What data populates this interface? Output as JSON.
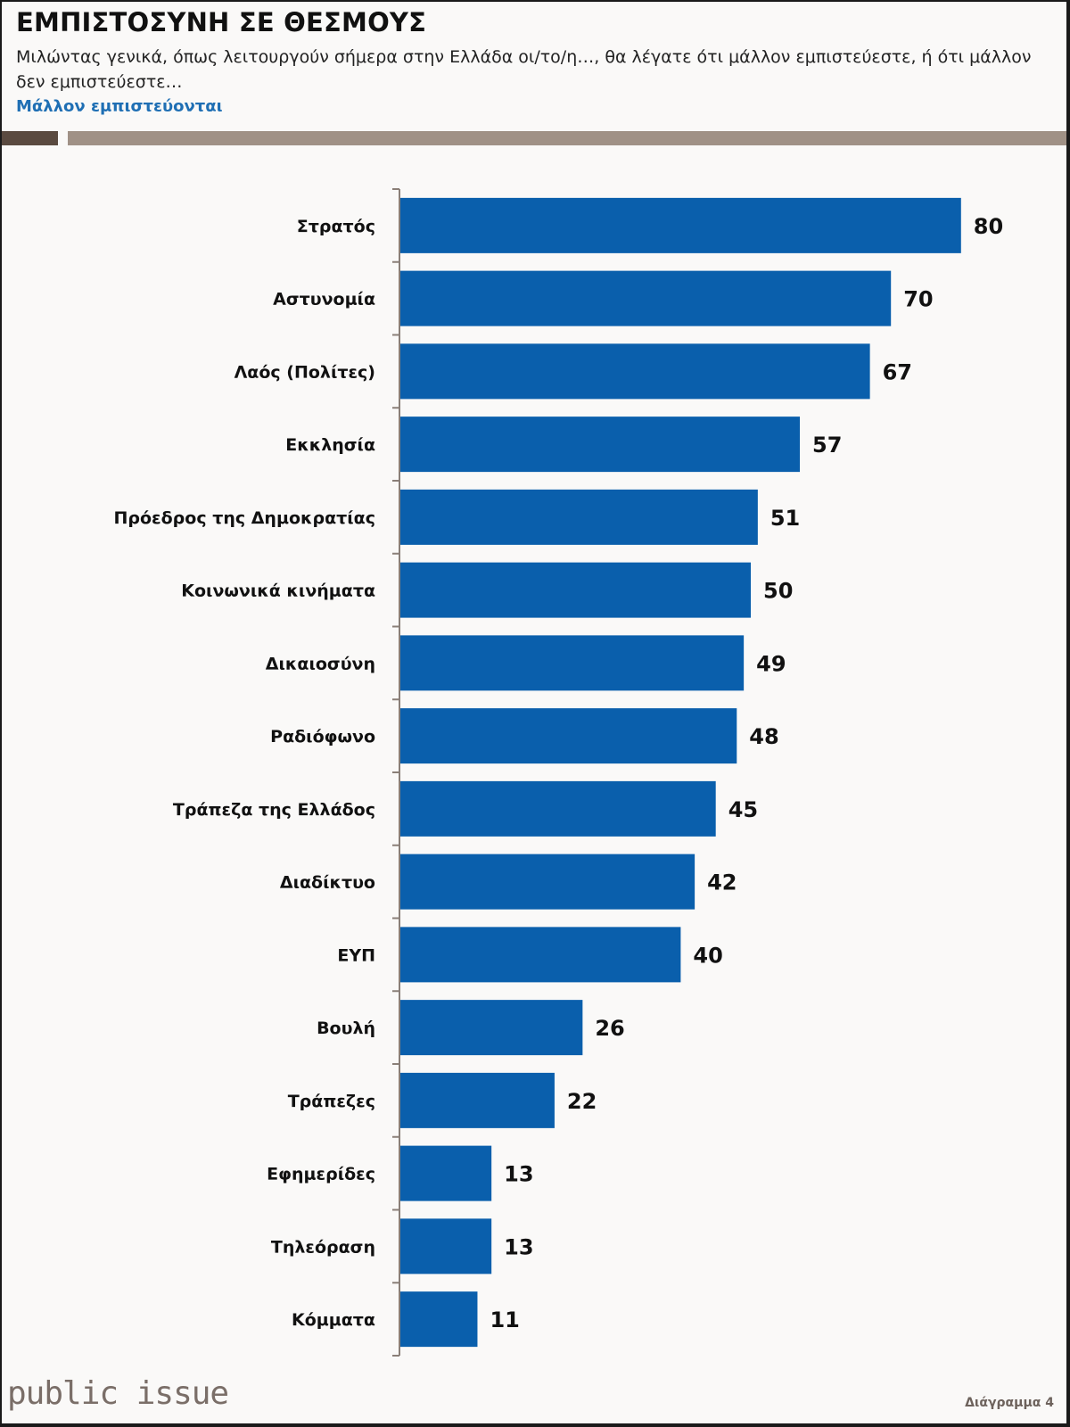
{
  "header": {
    "title": "ΕΜΠΙΣΤΟΣΥΝΗ ΣΕ ΘΕΣΜΟΥΣ",
    "subtitle": "Μιλώντας γενικά, όπως λειτουργούν σήμερα στην Ελλάδα οι/το/η…, θα λέγατε ότι μάλλον εμπιστεύεστε, ή ότι μάλλον δεν εμπιστεύεστε…",
    "series_label": "Μάλλον εμπιστεύονται"
  },
  "footer": {
    "brand": "public issue",
    "figure_number": "Διάγραμμα 4"
  },
  "colors": {
    "bar": "#0a5fac",
    "accent_text": "#1f6fb4",
    "rule_dark": "#5a4a40",
    "rule_light": "#a09186",
    "axis": "#8a7f78"
  },
  "chart_data": {
    "type": "bar",
    "orientation": "horizontal",
    "title": "ΕΜΠΙΣΤΟΣΥΝΗ ΣΕ ΘΕΣΜΟΥΣ",
    "series": [
      {
        "name": "Μάλλον εμπιστεύονται",
        "values": [
          80,
          70,
          67,
          57,
          51,
          50,
          49,
          48,
          45,
          42,
          40,
          26,
          22,
          13,
          13,
          11
        ]
      }
    ],
    "categories": [
      "Στρατός",
      "Αστυνομία",
      "Λαός (Πολίτες)",
      "Εκκλησία",
      "Πρόεδρος της Δημοκρατίας",
      "Κοινωνικά κινήματα",
      "Δικαιοσύνη",
      "Ραδιόφωνο",
      "Τράπεζα της Ελλάδος",
      "Διαδίκτυο",
      "ΕΥΠ",
      "Βουλή",
      "Τράπεζες",
      "Εφημερίδες",
      "Τηλεόραση",
      "Κόμματα"
    ],
    "xlabel": "",
    "ylabel": "",
    "xlim": [
      0,
      90
    ],
    "grid": false,
    "data_labels": true,
    "legend": "none"
  }
}
